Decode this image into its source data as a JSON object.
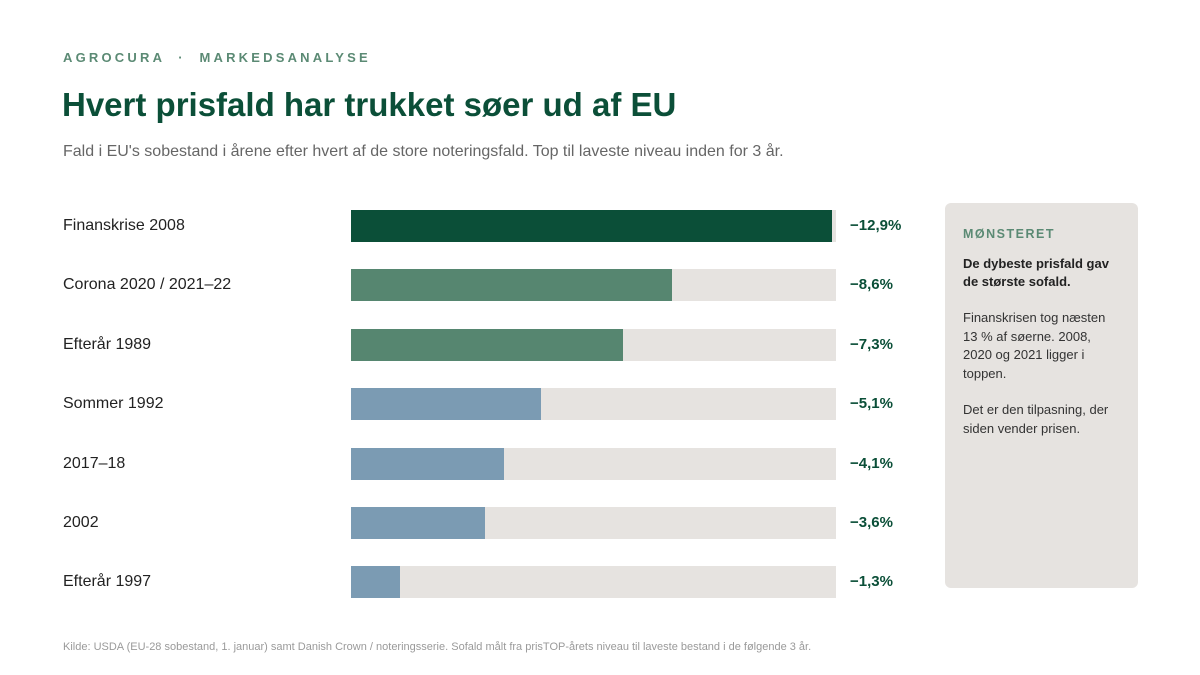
{
  "chart_data": {
    "type": "bar",
    "orientation": "horizontal",
    "kicker": "AGROCURA  ·  MARKEDSANALYSE",
    "title": "Hvert prisfald har trukket søer ud af EU",
    "subtitle": "Fald i EU's sobestand i årene efter hvert af de store noteringsfald. Top til laveste niveau inden for 3 år.",
    "categories": [
      "Finanskrise 2008",
      "Corona 2020 / 2021–22",
      "Efterår 1989",
      "Sommer 1992",
      "2017–18",
      "2002",
      "Efterår 1997"
    ],
    "values": [
      -12.9,
      -8.6,
      -7.3,
      -5.1,
      -4.1,
      -3.6,
      -1.3
    ],
    "value_labels": [
      "−12,9%",
      "−8,6%",
      "−7,3%",
      "−5,1%",
      "−4,1%",
      "−3,6%",
      "−1,3%"
    ],
    "colors": [
      "#0b4f38",
      "#568670",
      "#568670",
      "#7b9bb3",
      "#7b9bb3",
      "#7b9bb3",
      "#7b9bb3"
    ],
    "track_color": "#e6e3e0",
    "xlim": [
      0,
      -13
    ],
    "panel": {
      "title": "MØNSTERET",
      "lead": "De dybeste prisfald gav de største sofald.",
      "paragraphs": [
        "Finanskrisen tog næsten 13 % af søerne. 2008, 2020 og 2021 ligger i toppen.",
        "Det er den tilpasning, der siden vender prisen."
      ]
    },
    "source": "Kilde: USDA (EU-28 sobestand, 1. januar) samt Danish Crown / noteringsserie. Sofald målt fra prisTOP-årets niveau til laveste bestand i de følgende 3 år."
  }
}
